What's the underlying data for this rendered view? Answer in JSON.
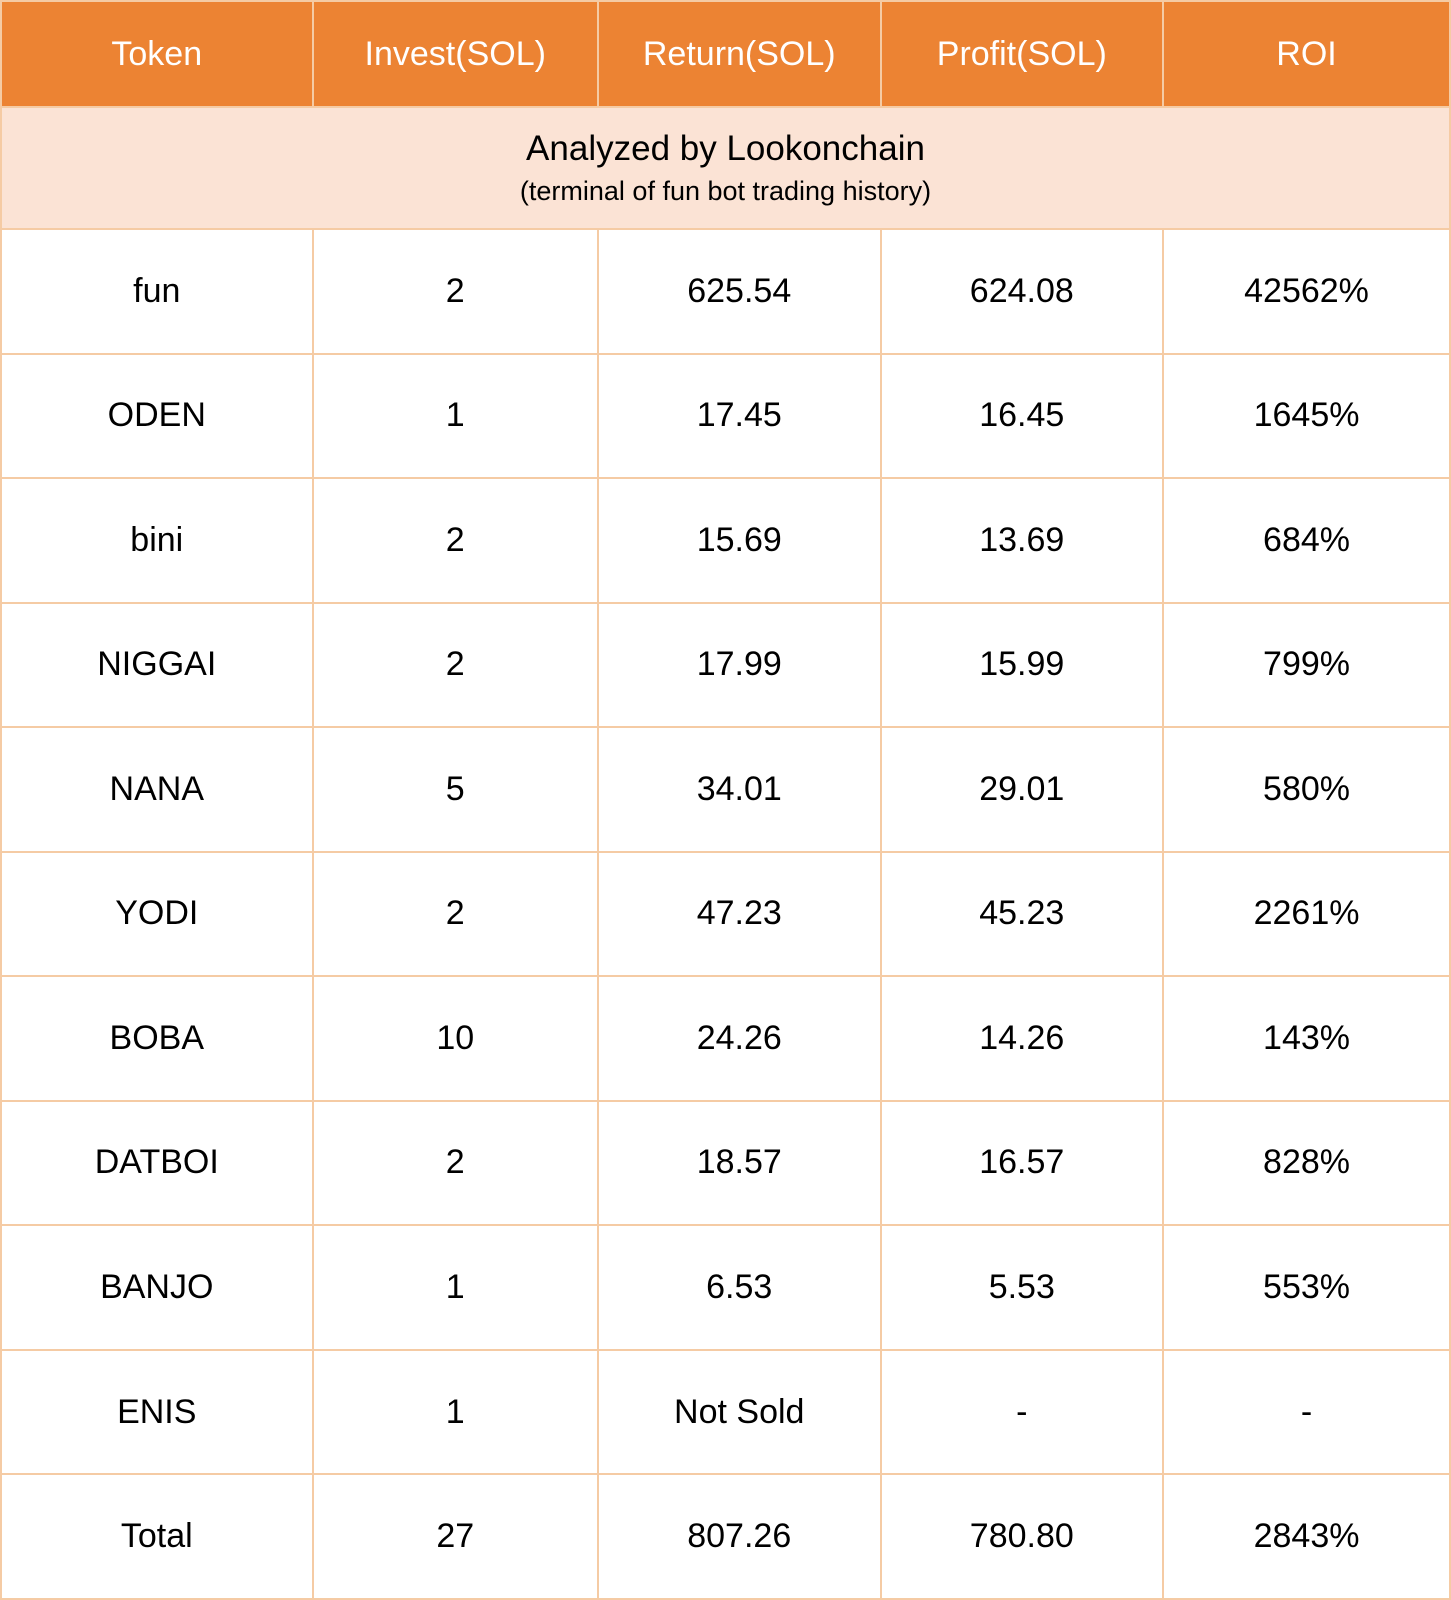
{
  "chart_data": {
    "type": "table",
    "title": "Analyzed by Lookonchain",
    "subtitle": "(terminal of fun bot trading history)",
    "columns": [
      "Token",
      "Invest(SOL)",
      "Return(SOL)",
      "Profit(SOL)",
      "ROI"
    ],
    "rows": [
      [
        "fun",
        "2",
        "625.54",
        "624.08",
        "42562%"
      ],
      [
        "ODEN",
        "1",
        "17.45",
        "16.45",
        "1645%"
      ],
      [
        "bini",
        "2",
        "15.69",
        "13.69",
        "684%"
      ],
      [
        "NIGGAI",
        "2",
        "17.99",
        "15.99",
        "799%"
      ],
      [
        "NANA",
        "5",
        "34.01",
        "29.01",
        "580%"
      ],
      [
        "YODI",
        "2",
        "47.23",
        "45.23",
        "2261%"
      ],
      [
        "BOBA",
        "10",
        "24.26",
        "14.26",
        "143%"
      ],
      [
        "DATBOI",
        "2",
        "18.57",
        "16.57",
        "828%"
      ],
      [
        "BANJO",
        "1",
        "6.53",
        "5.53",
        "553%"
      ],
      [
        "ENIS",
        "1",
        "Not Sold",
        "-",
        "-"
      ]
    ],
    "total_row": [
      "Total",
      "27",
      "807.26",
      "780.80",
      "2843%"
    ]
  },
  "colors": {
    "header_bg": "#EC8333",
    "header_text": "#FFFFFF",
    "subheader_bg": "#FBE3D5",
    "border": "#F5CBA4",
    "row_bg": "#FFFFFF",
    "body_text": "#000000"
  }
}
